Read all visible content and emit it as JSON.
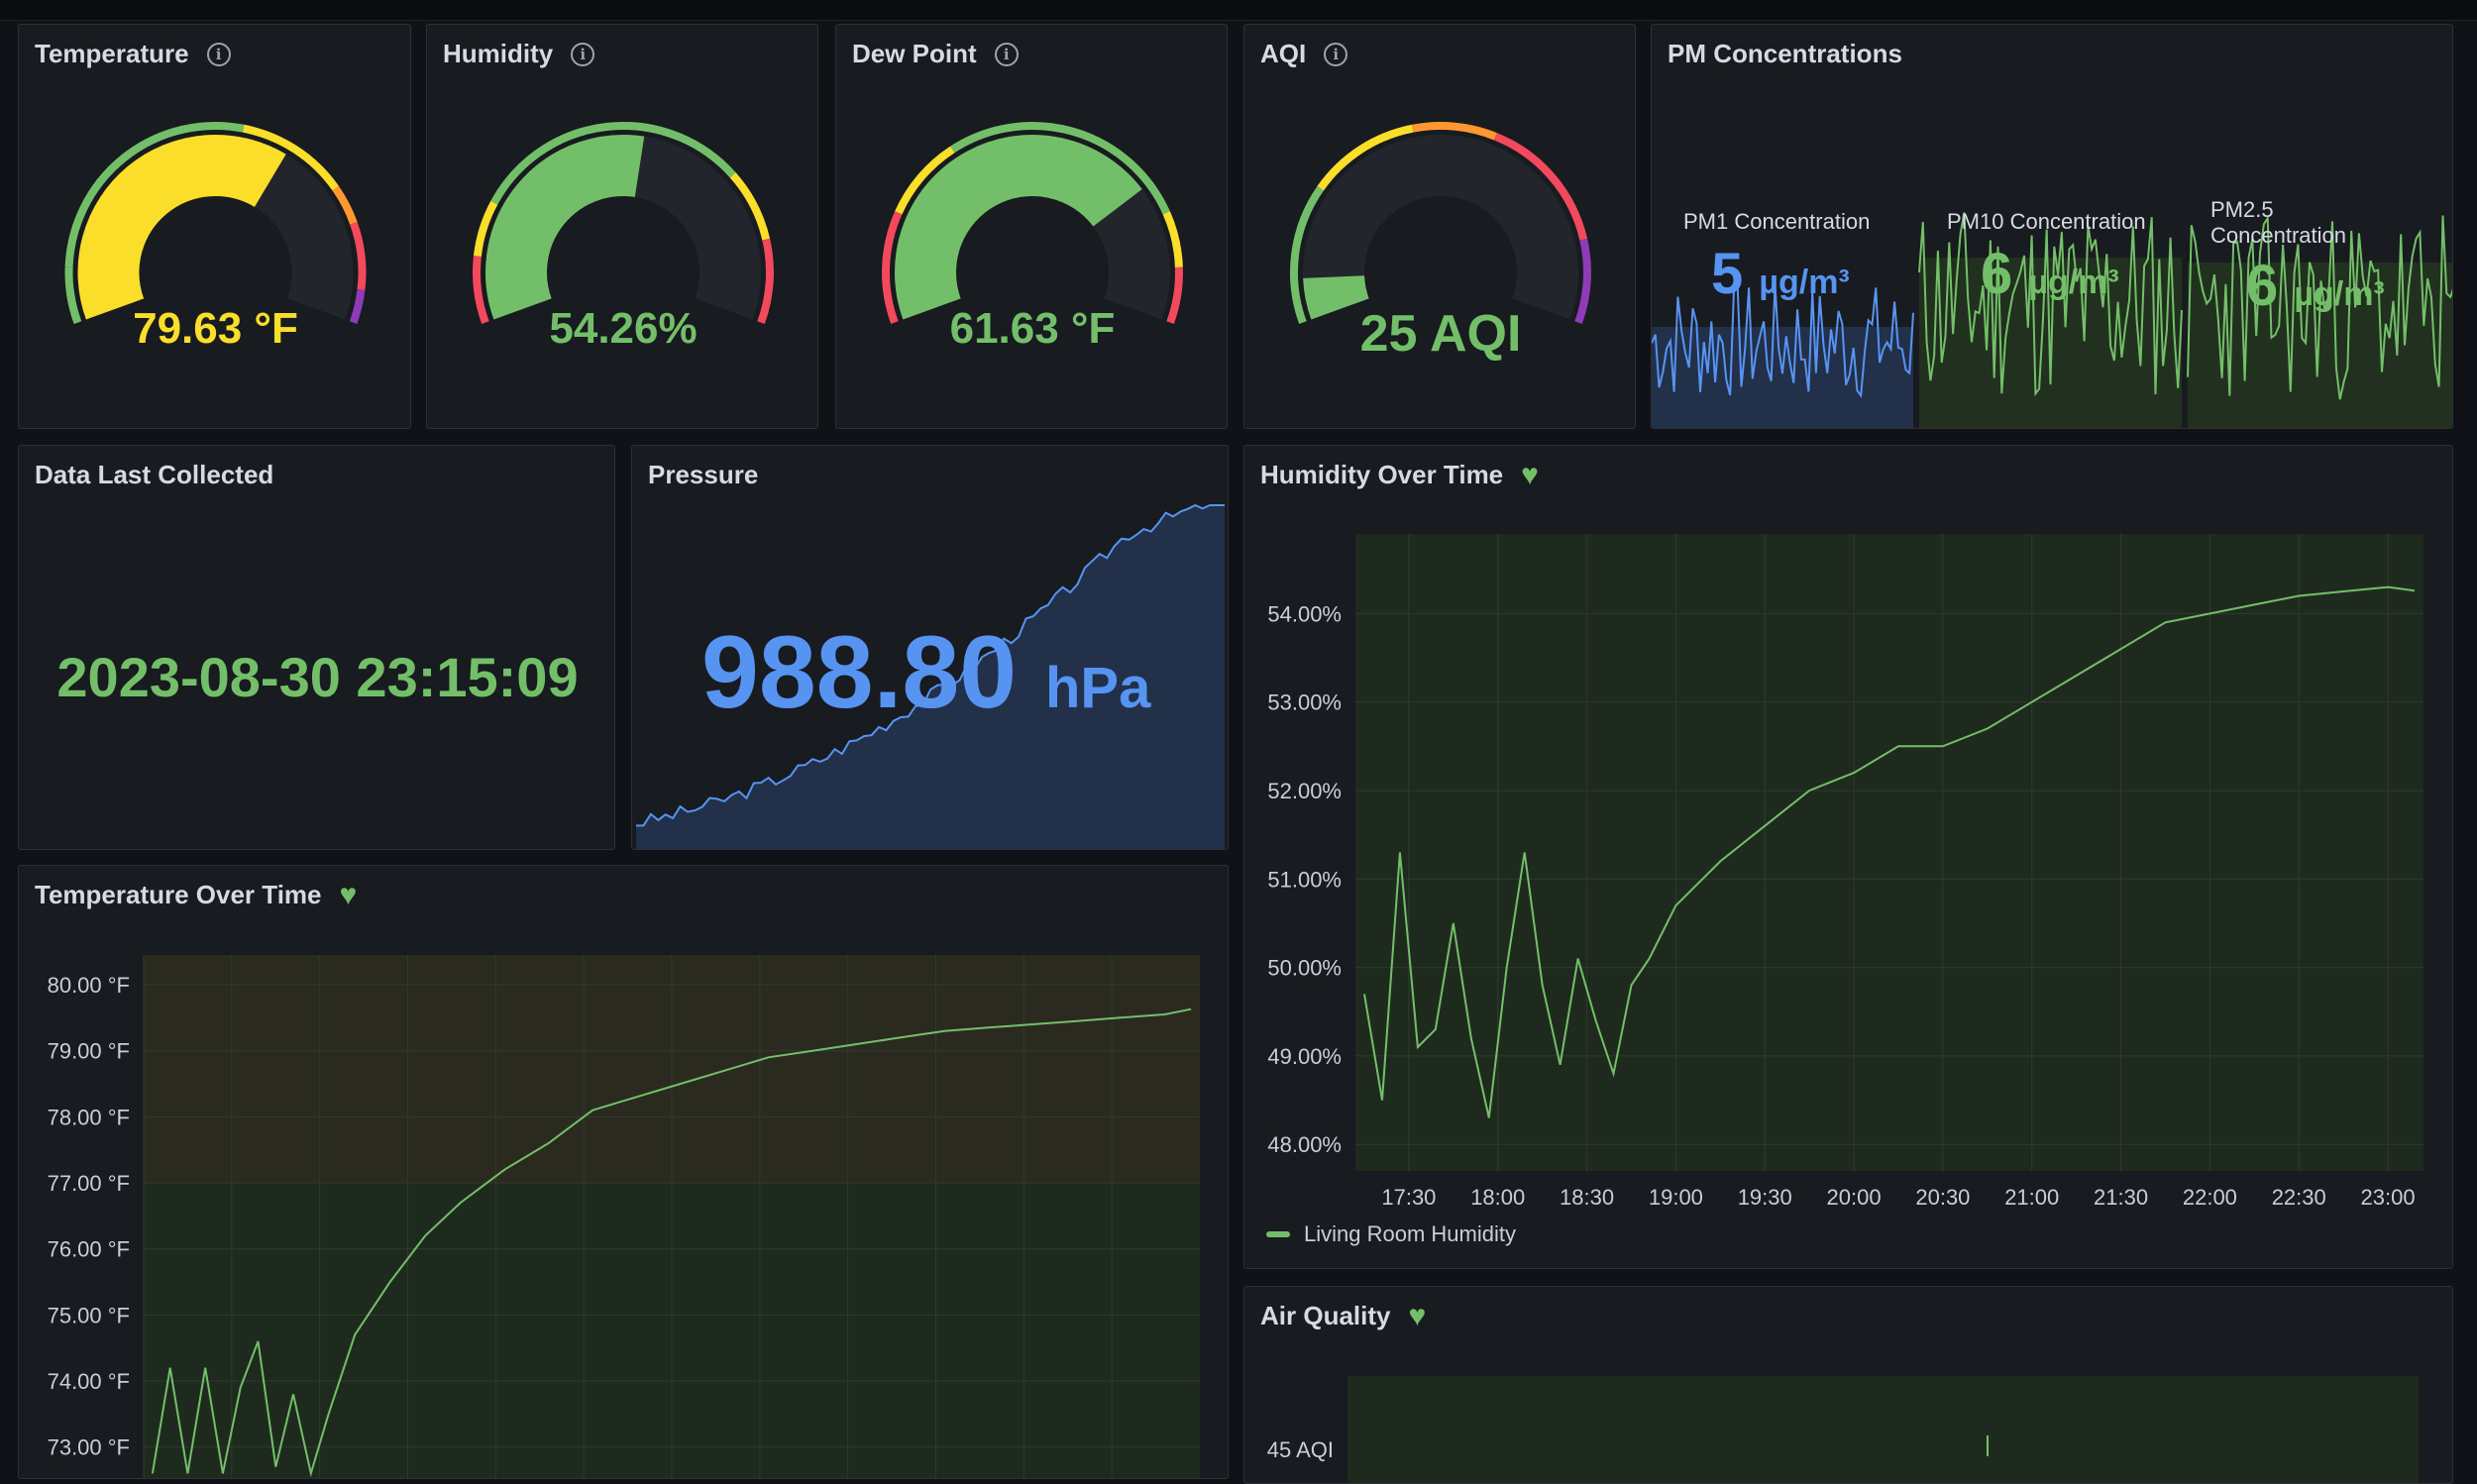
{
  "colors": {
    "green": "#73bf69",
    "yellow": "#fade2a",
    "blue": "#5794f2",
    "red": "#f2495c",
    "orange": "#ff9830",
    "purple": "#8f3bb8",
    "panel_bg": "#181b1f"
  },
  "gauges": [
    {
      "title": "Temperature",
      "value": "79.63 °F",
      "fill_fraction": 0.64,
      "color": "#fade2a",
      "has_info": true
    },
    {
      "title": "Humidity",
      "value": "54.26%",
      "fill_fraction": 0.54,
      "color": "#73bf69",
      "has_info": true
    },
    {
      "title": "Dew Point",
      "value": "61.63 °F",
      "fill_fraction": 0.74,
      "color": "#73bf69",
      "has_info": true
    },
    {
      "title": "AQI",
      "value": "25 AQI",
      "fill_fraction": 0.08,
      "color": "#73bf69",
      "has_info": true
    }
  ],
  "pm": {
    "title": "PM Concentrations",
    "items": [
      {
        "label": "PM1 Concentration",
        "value": "5",
        "unit": "µg/m³",
        "color": "#5794f2"
      },
      {
        "label": "PM10 Concentration",
        "value": "6",
        "unit": "µg/m³",
        "color": "#73bf69"
      },
      {
        "label": "PM2.5 Concentration",
        "value": "6",
        "unit": "µg/m³",
        "color": "#73bf69"
      }
    ]
  },
  "last_collected": {
    "title": "Data Last Collected",
    "value": "2023-08-30 23:15:09"
  },
  "pressure": {
    "title": "Pressure",
    "value": "988.80",
    "unit": "hPa"
  },
  "humidity_chart": {
    "title": "Humidity Over Time",
    "legend": "Living Room Humidity",
    "y_ticks": [
      "54.00%",
      "53.00%",
      "52.00%",
      "51.00%",
      "50.00%",
      "49.00%",
      "48.00%"
    ],
    "x_ticks": [
      "17:30",
      "18:00",
      "18:30",
      "19:00",
      "19:30",
      "20:00",
      "20:30",
      "21:00",
      "21:30",
      "22:00",
      "22:30",
      "23:00"
    ]
  },
  "temperature_chart": {
    "title": "Temperature Over Time",
    "y_ticks": [
      "80.00 °F",
      "79.00 °F",
      "78.00 °F",
      "77.00 °F",
      "76.00 °F",
      "75.00 °F",
      "74.00 °F",
      "73.00 °F"
    ]
  },
  "air_quality": {
    "title": "Air Quality",
    "y_tick": "45 AQI"
  },
  "chart_data": [
    {
      "type": "line",
      "title": "Humidity Over Time",
      "series": [
        {
          "name": "Living Room Humidity",
          "x": [
            17.25,
            17.35,
            17.45,
            17.55,
            17.65,
            17.75,
            17.85,
            17.95,
            18.05,
            18.15,
            18.25,
            18.35,
            18.45,
            18.55,
            18.65,
            18.75,
            18.85,
            19.0,
            19.25,
            19.5,
            19.75,
            20.0,
            20.25,
            20.5,
            20.75,
            21.0,
            21.25,
            21.5,
            21.75,
            22.0,
            22.25,
            22.5,
            22.75,
            23.0,
            23.15
          ],
          "values": [
            49.7,
            48.5,
            51.3,
            49.1,
            49.3,
            50.5,
            49.2,
            48.3,
            50.0,
            51.3,
            49.8,
            48.9,
            50.1,
            49.4,
            48.8,
            49.8,
            50.1,
            50.7,
            51.2,
            51.6,
            52.0,
            52.2,
            52.5,
            52.5,
            52.7,
            53.0,
            53.3,
            53.6,
            53.9,
            54.0,
            54.1,
            54.2,
            54.25,
            54.3,
            54.26
          ]
        }
      ],
      "ylim": [
        47.7,
        54.9
      ],
      "legend": "bottom-left",
      "grid": true
    },
    {
      "type": "line",
      "title": "Temperature Over Time",
      "series": [
        {
          "x": [
            17.25,
            17.35,
            17.45,
            17.55,
            17.65,
            17.75,
            17.85,
            17.95,
            18.05,
            18.15,
            18.25,
            18.4,
            18.6,
            18.8,
            19.0,
            19.25,
            19.5,
            19.75,
            20.0,
            20.25,
            20.5,
            20.75,
            21.0,
            21.25,
            21.5,
            21.75,
            22.0,
            22.25,
            22.5,
            22.75,
            23.0,
            23.15
          ],
          "values": [
            72.6,
            74.2,
            72.6,
            74.2,
            72.6,
            73.9,
            74.6,
            72.7,
            73.8,
            72.6,
            73.5,
            74.7,
            75.5,
            76.2,
            76.7,
            77.2,
            77.6,
            78.1,
            78.3,
            78.5,
            78.7,
            78.9,
            79.0,
            79.1,
            79.2,
            79.3,
            79.35,
            79.4,
            79.45,
            79.5,
            79.55,
            79.63
          ]
        }
      ],
      "ylim": [
        72.5,
        80.45
      ],
      "threshold": 77,
      "grid": true
    }
  ]
}
